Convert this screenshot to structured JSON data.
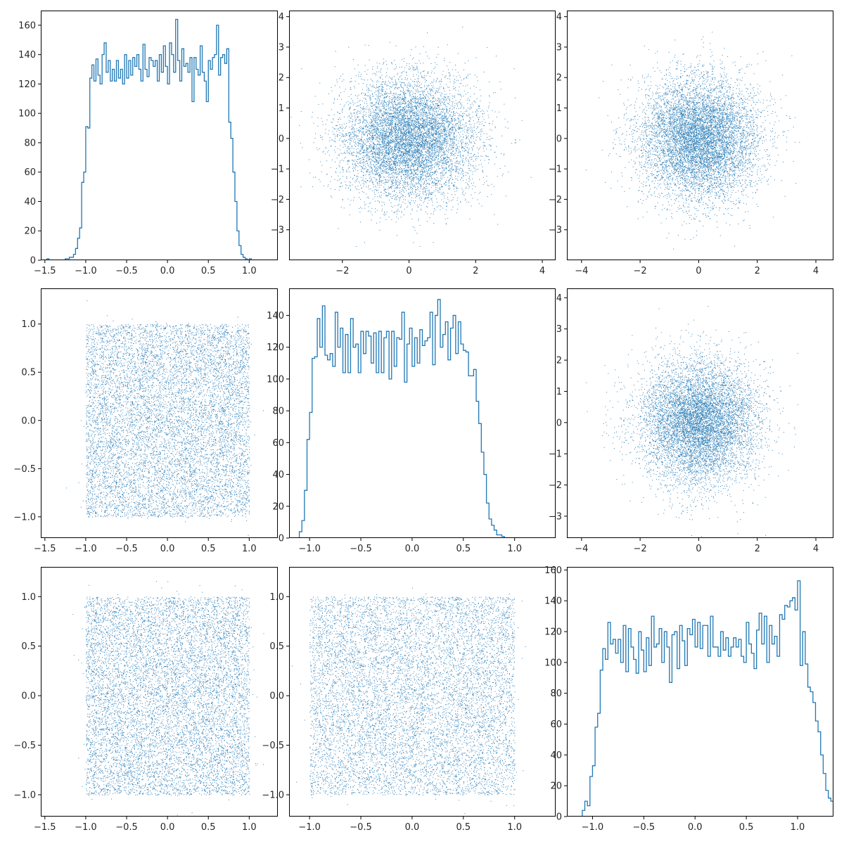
{
  "figure": {
    "layout": "3x3 pair grid"
  },
  "chart_data": [
    {
      "type": "histogram",
      "title": "",
      "xlabel": "",
      "ylabel": "",
      "xlim": [
        -1.55,
        1.35
      ],
      "ylim": [
        0,
        170
      ],
      "xticks": [
        -1.5,
        -1.0,
        -0.5,
        0.0,
        0.5,
        1.0
      ],
      "xtick_labels": [
        "−1.5",
        "−1.0",
        "−0.5",
        "0.0",
        "0.5",
        "1.0"
      ],
      "yticks": [
        0,
        20,
        40,
        60,
        80,
        100,
        120,
        140,
        160
      ],
      "ytick_labels": [
        "0",
        "20",
        "40",
        "60",
        "80",
        "100",
        "120",
        "140",
        "160"
      ],
      "bin_start": -1.475,
      "bin_width": 0.025,
      "counts": [
        1,
        0,
        0,
        0,
        0,
        0,
        0,
        0,
        0,
        1,
        1,
        2,
        2,
        4,
        8,
        15,
        22,
        53,
        60,
        91,
        90,
        124,
        133,
        122,
        137,
        126,
        120,
        140,
        148,
        128,
        136,
        122,
        130,
        122,
        136,
        124,
        130,
        120,
        140,
        124,
        136,
        126,
        138,
        132,
        140,
        130,
        122,
        147,
        130,
        125,
        138,
        136,
        132,
        136,
        122,
        140,
        128,
        146,
        132,
        120,
        148,
        140,
        128,
        164,
        136,
        122,
        144,
        132,
        134,
        128,
        138,
        108,
        138,
        130,
        126,
        146,
        128,
        122,
        108,
        136,
        130,
        138,
        140,
        160,
        126,
        138,
        140,
        134,
        144,
        94,
        83,
        60,
        40,
        20,
        10,
        4,
        2,
        1,
        0,
        1
      ],
      "color": "#1f77b4"
    },
    {
      "type": "scatter",
      "title": "",
      "xlabel": "",
      "ylabel": "",
      "xlim": [
        -3.6,
        4.4
      ],
      "ylim": [
        -4.0,
        4.2
      ],
      "xticks": [
        -2,
        0,
        2,
        4
      ],
      "xtick_labels": [
        "−2",
        "0",
        "2",
        "4"
      ],
      "yticks": [
        -3,
        -2,
        -1,
        0,
        1,
        2,
        3,
        4
      ],
      "ytick_labels": [
        "−3",
        "−2",
        "−1",
        "0",
        "1",
        "2",
        "3",
        "4"
      ],
      "distribution": "bivariate normal",
      "x_mean": 0.0,
      "x_std": 1.0,
      "y_mean": 0.0,
      "y_std": 1.0,
      "n_points": 8000,
      "color": "#1f77b4"
    },
    {
      "type": "scatter",
      "title": "",
      "xlabel": "",
      "ylabel": "",
      "xlim": [
        -4.5,
        4.6
      ],
      "ylim": [
        -4.0,
        4.2
      ],
      "xticks": [
        -4,
        -2,
        0,
        2,
        4
      ],
      "xtick_labels": [
        "−4",
        "−2",
        "0",
        "2",
        "4"
      ],
      "yticks": [
        -3,
        -2,
        -1,
        0,
        1,
        2,
        3,
        4
      ],
      "ytick_labels": [
        "−3",
        "−2",
        "−1",
        "0",
        "1",
        "2",
        "3",
        "4"
      ],
      "distribution": "bivariate normal",
      "x_mean": 0.0,
      "x_std": 1.0,
      "y_mean": 0.0,
      "y_std": 1.0,
      "n_points": 8000,
      "color": "#1f77b4"
    },
    {
      "type": "scatter",
      "title": "",
      "xlabel": "",
      "ylabel": "",
      "xlim": [
        -1.55,
        1.35
      ],
      "ylim": [
        -1.22,
        1.37
      ],
      "xticks": [
        -1.5,
        -1.0,
        -0.5,
        0.0,
        0.5,
        1.0
      ],
      "xtick_labels": [
        "−1.5",
        "−1.0",
        "−0.5",
        "0.0",
        "0.5",
        "1.0"
      ],
      "yticks": [
        -1.0,
        -0.5,
        0.0,
        0.5,
        1.0
      ],
      "ytick_labels": [
        "−1.0",
        "−0.5",
        "0.0",
        "0.5",
        "1.0"
      ],
      "distribution": "uniform square",
      "x_range": [
        -1.0,
        1.0
      ],
      "y_range": [
        -1.0,
        1.0
      ],
      "n_points": 9000,
      "color": "#1f77b4"
    },
    {
      "type": "histogram",
      "title": "",
      "xlabel": "",
      "ylabel": "",
      "xlim": [
        -1.2,
        1.4
      ],
      "ylim": [
        0,
        157
      ],
      "xticks": [
        -1.0,
        -0.5,
        0.0,
        0.5,
        1.0
      ],
      "xtick_labels": [
        "−1.0",
        "−0.5",
        "0.0",
        "0.5",
        "1.0"
      ],
      "yticks": [
        0,
        20,
        40,
        60,
        80,
        100,
        120,
        140
      ],
      "ytick_labels": [
        "0",
        "20",
        "40",
        "60",
        "80",
        "100",
        "120",
        "140"
      ],
      "bin_start": -1.1,
      "bin_width": 0.025,
      "counts": [
        4,
        11,
        30,
        62,
        79,
        113,
        114,
        138,
        120,
        146,
        115,
        112,
        116,
        108,
        142,
        120,
        132,
        104,
        128,
        104,
        138,
        120,
        122,
        104,
        130,
        116,
        130,
        127,
        110,
        129,
        104,
        130,
        104,
        126,
        130,
        100,
        130,
        108,
        126,
        125,
        142,
        98,
        122,
        132,
        108,
        126,
        110,
        131,
        121,
        124,
        126,
        142,
        109,
        140,
        150,
        120,
        128,
        136,
        112,
        132,
        140,
        116,
        136,
        122,
        118,
        117,
        102,
        102,
        106,
        86,
        72,
        54,
        40,
        22,
        12,
        8,
        5,
        2,
        2,
        1,
        0
      ],
      "color": "#1f77b4"
    },
    {
      "type": "scatter",
      "title": "",
      "xlabel": "",
      "ylabel": "",
      "xlim": [
        -4.5,
        4.6
      ],
      "ylim": [
        -3.7,
        4.3
      ],
      "xticks": [
        -4,
        -2,
        0,
        2,
        4
      ],
      "xtick_labels": [
        "−4",
        "−2",
        "0",
        "2",
        "4"
      ],
      "yticks": [
        -3,
        -2,
        -1,
        0,
        1,
        2,
        3,
        4
      ],
      "ytick_labels": [
        "−3",
        "−2",
        "−1",
        "0",
        "1",
        "2",
        "3",
        "4"
      ],
      "distribution": "bivariate normal",
      "x_mean": 0.0,
      "x_std": 1.0,
      "y_mean": 0.0,
      "y_std": 1.0,
      "n_points": 8000,
      "color": "#1f77b4"
    },
    {
      "type": "scatter",
      "title": "",
      "xlabel": "",
      "ylabel": "",
      "xlim": [
        -1.55,
        1.35
      ],
      "ylim": [
        -1.22,
        1.3
      ],
      "xticks": [
        -1.5,
        -1.0,
        -0.5,
        0.0,
        0.5,
        1.0
      ],
      "xtick_labels": [
        "−1.5",
        "−1.0",
        "−0.5",
        "0.0",
        "0.5",
        "1.0"
      ],
      "yticks": [
        -1.0,
        -0.5,
        0.0,
        0.5,
        1.0
      ],
      "ytick_labels": [
        "−1.0",
        "−0.5",
        "0.0",
        "0.5",
        "1.0"
      ],
      "distribution": "uniform square",
      "x_range": [
        -1.0,
        1.0
      ],
      "y_range": [
        -1.0,
        1.0
      ],
      "n_points": 9000,
      "color": "#1f77b4"
    },
    {
      "type": "scatter",
      "title": "",
      "xlabel": "",
      "ylabel": "",
      "xlim": [
        -1.2,
        1.4
      ],
      "ylim": [
        -1.22,
        1.3
      ],
      "xticks": [
        -1.0,
        -0.5,
        0.0,
        0.5,
        1.0
      ],
      "xtick_labels": [
        "−1.0",
        "−0.5",
        "0.0",
        "0.5",
        "1.0"
      ],
      "yticks": [
        -1.0,
        -0.5,
        0.0,
        0.5,
        1.0
      ],
      "ytick_labels": [
        "−1.0",
        "−0.5",
        "0.0",
        "0.5",
        "1.0"
      ],
      "distribution": "uniform square",
      "x_range": [
        -1.0,
        1.0
      ],
      "y_range": [
        -1.0,
        1.0
      ],
      "n_points": 9000,
      "color": "#1f77b4"
    },
    {
      "type": "histogram",
      "title": "",
      "xlabel": "",
      "ylabel": "",
      "xlim": [
        -1.25,
        1.35
      ],
      "ylim": [
        0,
        162
      ],
      "xticks": [
        -1.0,
        -0.5,
        0.0,
        0.5,
        1.0
      ],
      "xtick_labels": [
        "−1.0",
        "−0.5",
        "0.0",
        "0.5",
        "1.0"
      ],
      "yticks": [
        0,
        20,
        40,
        60,
        80,
        100,
        120,
        140,
        160
      ],
      "ytick_labels": [
        "0",
        "20",
        "40",
        "60",
        "80",
        "100",
        "120",
        "140",
        "160"
      ],
      "bin_start": -1.1,
      "bin_width": 0.025,
      "counts": [
        4,
        10,
        7,
        26,
        33,
        58,
        67,
        95,
        109,
        102,
        126,
        112,
        115,
        106,
        115,
        100,
        124,
        94,
        122,
        110,
        102,
        93,
        120,
        108,
        94,
        116,
        98,
        130,
        110,
        112,
        122,
        100,
        120,
        110,
        87,
        118,
        120,
        96,
        124,
        114,
        98,
        122,
        118,
        128,
        110,
        126,
        109,
        124,
        124,
        104,
        130,
        110,
        110,
        104,
        120,
        108,
        116,
        104,
        110,
        116,
        110,
        115,
        104,
        100,
        126,
        112,
        106,
        96,
        121,
        132,
        112,
        130,
        100,
        124,
        112,
        117,
        104,
        131,
        128,
        137,
        136,
        140,
        142,
        134,
        153,
        98,
        120,
        99,
        84,
        81,
        74,
        62,
        55,
        40,
        28,
        17,
        12,
        10,
        5,
        3,
        3
      ],
      "color": "#1f77b4"
    }
  ]
}
